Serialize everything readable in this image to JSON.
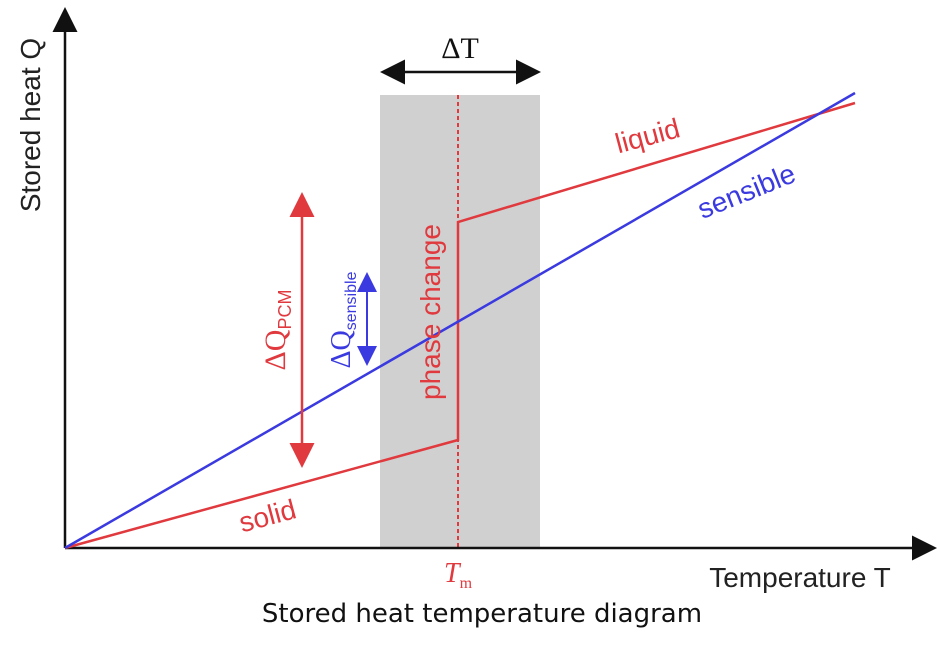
{
  "diagram": {
    "y_axis_label": "Stored heat Q",
    "x_axis_label": "Temperature T",
    "delta_t": "ΔT",
    "curves": {
      "liquid": "liquid",
      "sensible": "sensible",
      "solid": "solid"
    },
    "phase_change": "phase change",
    "delta_q_pcm": {
      "main": "ΔQ",
      "sub": "PCM"
    },
    "delta_q_sensible": {
      "main": "ΔQ",
      "sub": "sensible"
    },
    "melting_temp": {
      "main": "T",
      "sub": "m"
    },
    "caption": "Stored heat temperature diagram"
  }
}
